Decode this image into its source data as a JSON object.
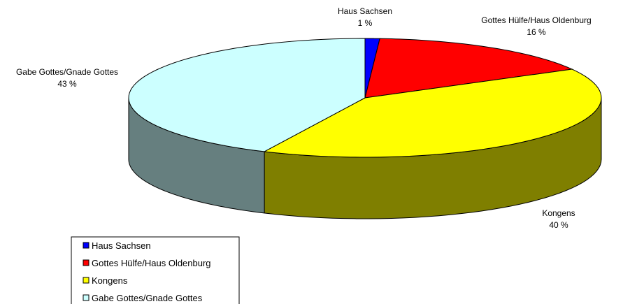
{
  "chart_data": {
    "type": "pie",
    "categories": [
      "Haus Sachsen",
      "Gottes Hülfe/Haus Oldenburg",
      "Kongens",
      "Gabe Gottes/Gnade Gottes"
    ],
    "values": [
      1,
      16,
      40,
      43
    ],
    "value_labels": [
      "1 %",
      "16 %",
      "40 %",
      "43 %"
    ],
    "colors": [
      "#0000ff",
      "#ff0000",
      "#ffff00",
      "#ccffff"
    ],
    "legend": "bottom-left"
  }
}
